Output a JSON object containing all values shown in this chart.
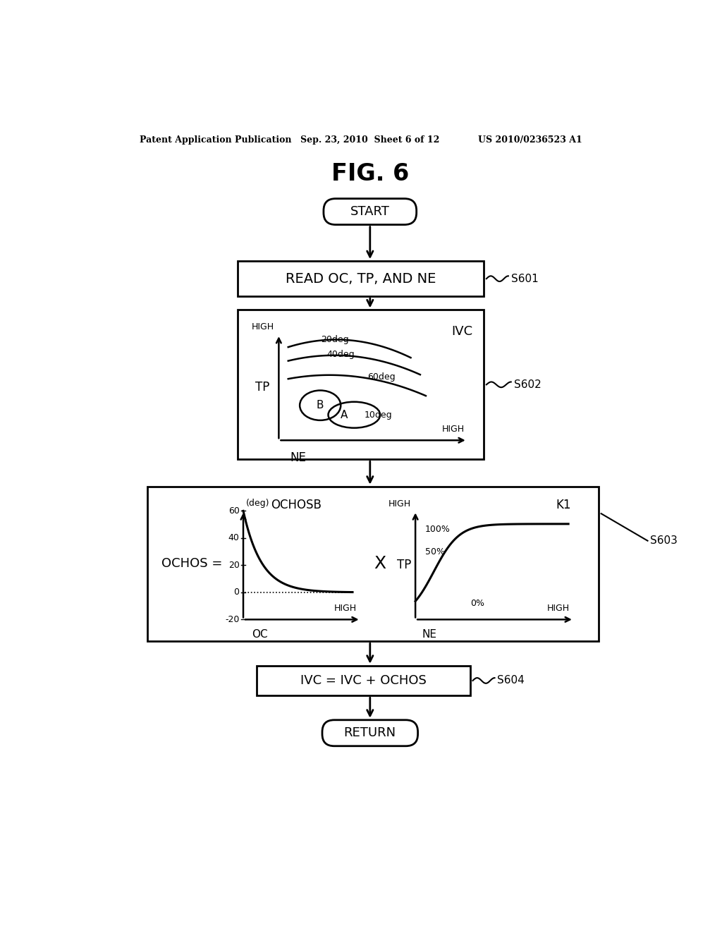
{
  "bg_color": "#ffffff",
  "header_left": "Patent Application Publication",
  "header_mid": "Sep. 23, 2010  Sheet 6 of 12",
  "header_right": "US 2010/0236523 A1",
  "fig_title": "FIG. 6",
  "start_text": "START",
  "box1_text": "READ OC, TP, AND NE",
  "box1_label": "S601",
  "box2_label": "S602",
  "box2_ivc_label": "IVC",
  "box2_tp_label": "TP",
  "box2_high_y": "HIGH",
  "box2_high_x": "HIGH",
  "box2_ne_label": "NE",
  "box2_curves": [
    "20deg",
    "40deg",
    "60deg",
    "10deg"
  ],
  "box3_label": "S603",
  "box3_title_left": "OCHOSB",
  "box3_ylabel": "(deg)",
  "box3_yticks": [
    [
      60,
      "60"
    ],
    [
      40,
      "40"
    ],
    [
      20,
      "20"
    ],
    [
      0,
      "0"
    ],
    [
      -20,
      "-20"
    ]
  ],
  "box3_high": "HIGH",
  "box3_oc": "OC",
  "box3_ochos": "OCHOS =",
  "box3_x_symbol": "X",
  "box3_k1_title": "K1",
  "box3_k1_high_y": "HIGH",
  "box3_k1_tp": "TP",
  "box3_k1_100": "100%",
  "box3_k1_50": "50%",
  "box3_k1_0": "0%",
  "box3_k1_high_x": "HIGH",
  "box3_k1_ne": "NE",
  "box4_text": "IVC = IVC + OCHOS",
  "box4_label": "S604",
  "return_text": "RETURN"
}
